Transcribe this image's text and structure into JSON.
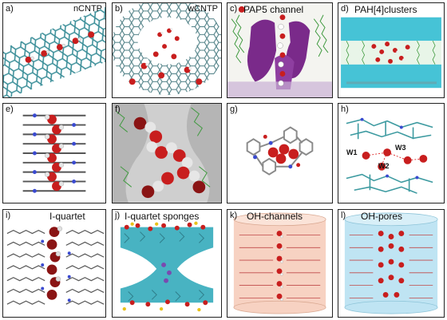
{
  "panels": [
    {
      "letter": "a)",
      "title": "nCNTP"
    },
    {
      "letter": "b)",
      "title": "wCNTP"
    },
    {
      "letter": "c)",
      "title": "PAP5 channel"
    },
    {
      "letter": "d)",
      "title": "PAH[4]clusters"
    },
    {
      "letter": "e)",
      "title": ""
    },
    {
      "letter": "f)",
      "title": ""
    },
    {
      "letter": "g)",
      "title": ""
    },
    {
      "letter": "h)",
      "title": "",
      "labels": [
        "W1",
        "W3",
        "W2"
      ]
    },
    {
      "letter": "i)",
      "title": "I-quartet"
    },
    {
      "letter": "j)",
      "title": "I-quartet sponges"
    },
    {
      "letter": "k)",
      "title": "OH-channels"
    },
    {
      "letter": "l)",
      "title": "OH-pores"
    }
  ],
  "colors": {
    "nanotube": "#3c8f99",
    "water_oxygen": "#c81e1e",
    "water_hydrogen": "#e6e6e6",
    "lipid_tail": "#3f9a3f",
    "protein": "#7a2a8a",
    "membrane": "#46c3d6",
    "carbon": "#8a8a8a",
    "nitrogen": "#3a4ad0",
    "channel_fill": "#f7d2c2",
    "pore_fill": "#bfe4f3"
  }
}
